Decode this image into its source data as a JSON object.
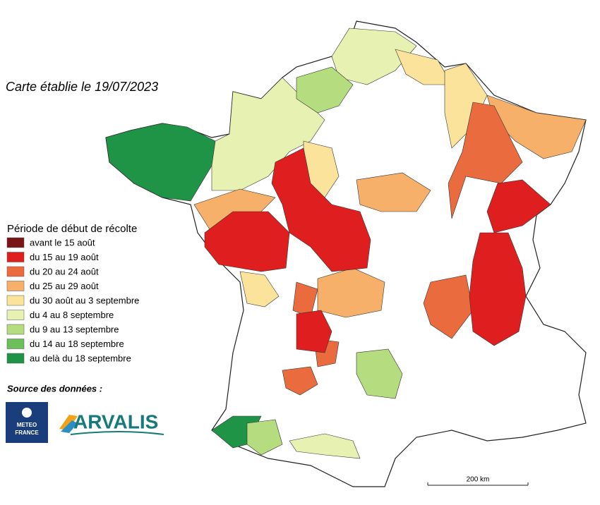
{
  "title": "Carte établie le 19/07/2023",
  "legend": {
    "title": "Période de début de récolte",
    "items": [
      {
        "label": "avant le 15 août",
        "color": "#7a1517"
      },
      {
        "label": "du 15 au 19 août",
        "color": "#df1f1f"
      },
      {
        "label": "du 20 au 24 août",
        "color": "#ea6b3e"
      },
      {
        "label": "du 25 au 29 août",
        "color": "#f6b06a"
      },
      {
        "label": "du 30 août au 3 septembre",
        "color": "#fbe39b"
      },
      {
        "label": "du 4 au 8 septembre",
        "color": "#e6f1b2"
      },
      {
        "label": "du 9 au 13 septembre",
        "color": "#b5dc7f"
      },
      {
        "label": "du 14 au 18 septembre",
        "color": "#6cbf5b"
      },
      {
        "label": "au delà du 18 septembre",
        "color": "#1f9447"
      }
    ]
  },
  "source": {
    "label": "Source des données :",
    "meteo_france": [
      "METEO",
      "FRANCE"
    ],
    "arvalis": "ARVALIS"
  },
  "scale": "200 km"
}
